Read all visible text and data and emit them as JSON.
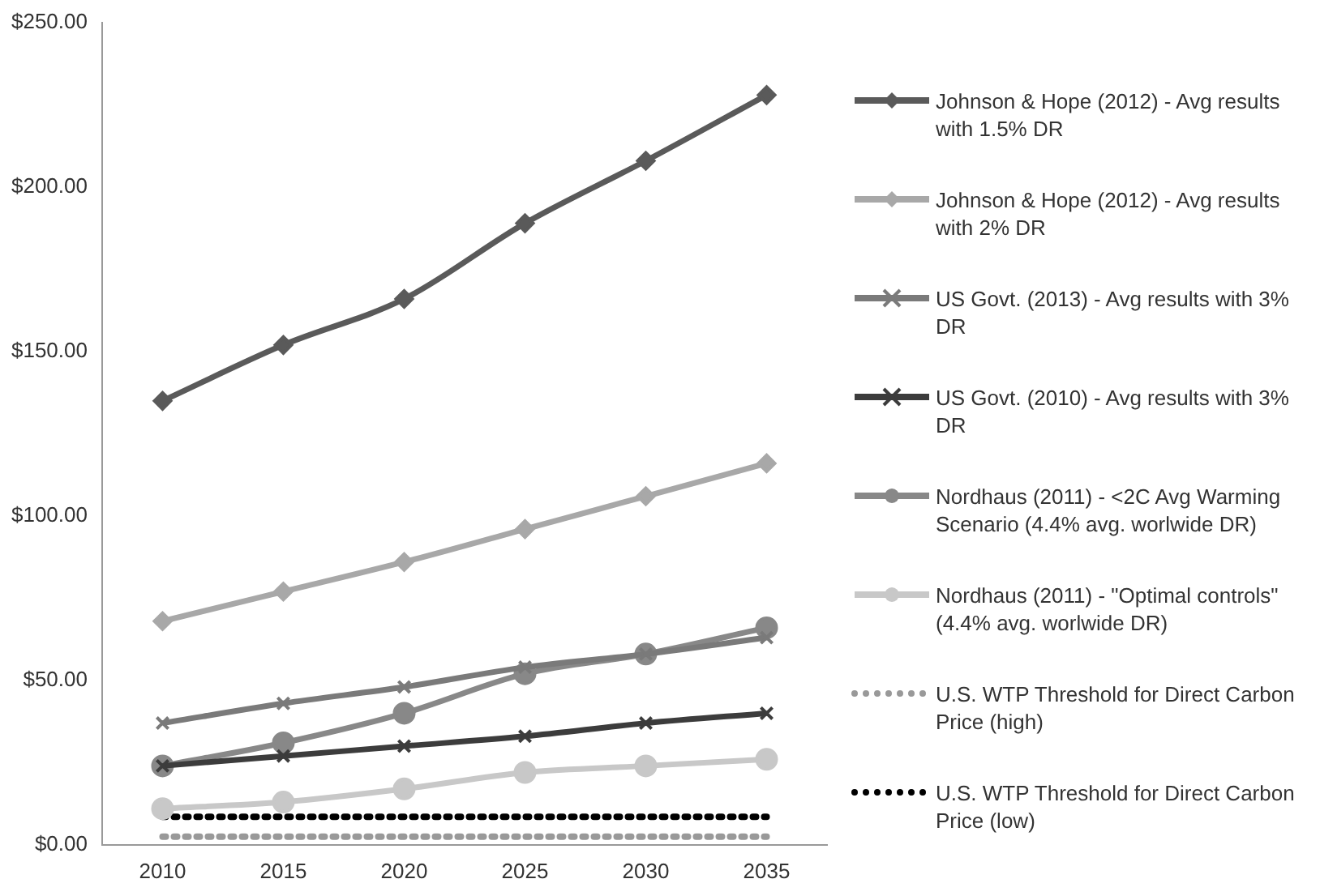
{
  "chart_data": {
    "type": "line",
    "categories": [
      "2010",
      "2015",
      "2020",
      "2025",
      "2030",
      "2035"
    ],
    "series": [
      {
        "name": "Johnson & Hope (2012) - Avg results with 1.5% DR",
        "color": "#5a5a5a",
        "marker": "diamond",
        "values": [
          135,
          152,
          166,
          189,
          208,
          228
        ]
      },
      {
        "name": "Johnson & Hope (2012) - Avg results with 2% DR",
        "color": "#a8a8a8",
        "marker": "diamond",
        "values": [
          68,
          77,
          86,
          96,
          106,
          116
        ]
      },
      {
        "name": "US Govt. (2013) - Avg results with 3% DR",
        "color": "#7a7a7a",
        "marker": "cross",
        "values": [
          37,
          43,
          48,
          54,
          58,
          63
        ]
      },
      {
        "name": "US Govt. (2010) - Avg results with 3% DR",
        "color": "#3c3c3c",
        "marker": "cross",
        "values": [
          24,
          27,
          30,
          33,
          37,
          40
        ]
      },
      {
        "name": "Nordhaus (2011) - <2C Avg Warming Scenario (4.4% avg. worlwide DR)",
        "color": "#888888",
        "marker": "circle",
        "values": [
          24,
          31,
          40,
          52,
          58,
          66
        ]
      },
      {
        "name": "Nordhaus (2011) - \"Optimal controls\" (4.4% avg. worlwide DR)",
        "color": "#c8c8c8",
        "marker": "circle",
        "values": [
          11,
          13,
          17,
          22,
          24,
          26
        ]
      },
      {
        "name": "U.S. WTP Threshold for Direct Carbon Price (high)",
        "color": "#999999",
        "marker": "none",
        "line_style": "dotted",
        "values": [
          2.5,
          2.5,
          2.5,
          2.5,
          2.5,
          2.5
        ]
      },
      {
        "name": "U.S. WTP Threshold for Direct Carbon Price (low)",
        "color": "#000000",
        "marker": "none",
        "line_style": "dotted",
        "values": [
          8.5,
          8.5,
          8.5,
          8.5,
          8.5,
          8.5
        ]
      }
    ],
    "ylim": [
      0,
      250
    ],
    "yticks": [
      {
        "value": 0,
        "label": "$0.00"
      },
      {
        "value": 50,
        "label": "$50.00"
      },
      {
        "value": 100,
        "label": "$100.00"
      },
      {
        "value": 150,
        "label": "$150.00"
      },
      {
        "value": 200,
        "label": "$200.00"
      },
      {
        "value": 250,
        "label": "$250.00"
      }
    ],
    "grid": false,
    "legend": "right"
  }
}
